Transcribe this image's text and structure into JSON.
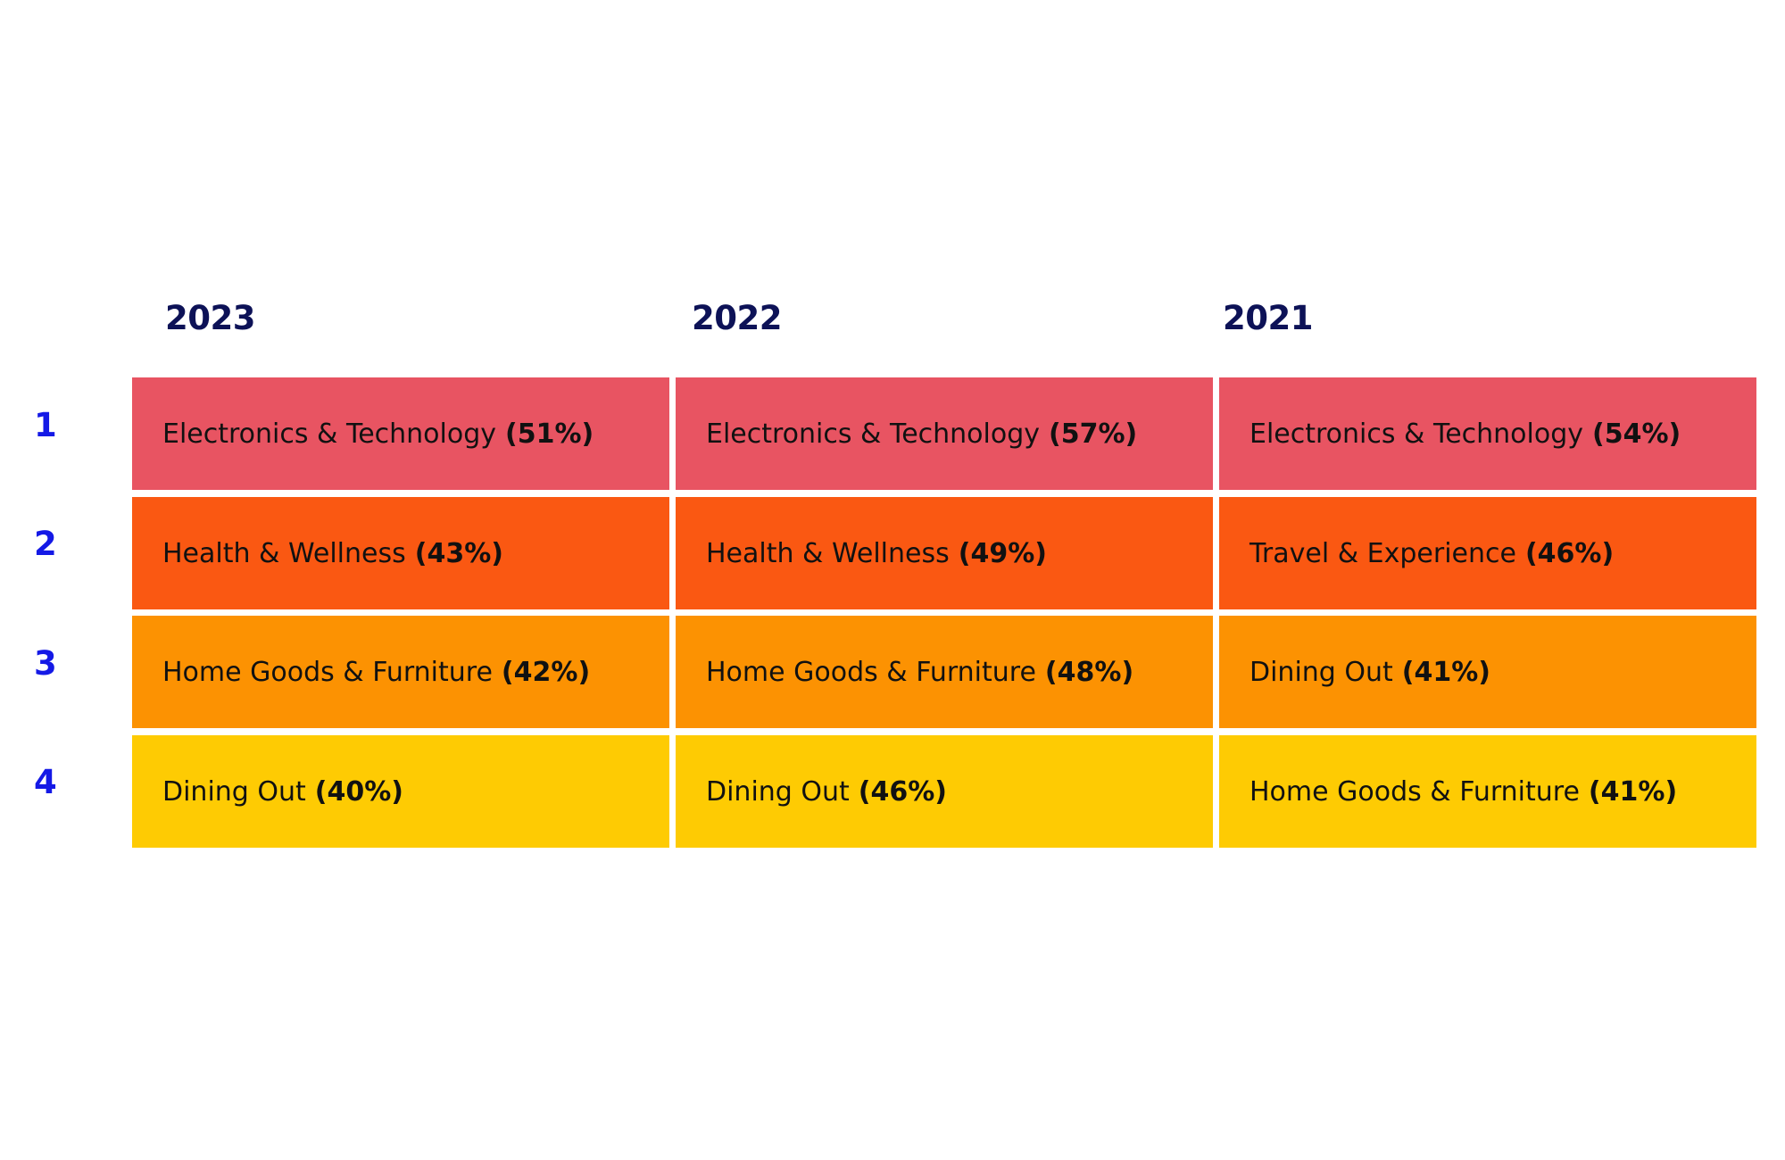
{
  "chart_data": {
    "type": "table",
    "columns": [
      "2023",
      "2022",
      "2021"
    ],
    "ranks": [
      "1",
      "2",
      "3",
      "4"
    ],
    "row_colors": [
      "#e85462",
      "#fa5812",
      "#fc9202",
      "#fecb03"
    ],
    "cells": [
      [
        {
          "label": "Electronics & Technology",
          "value": 51,
          "value_text": "(51%)"
        },
        {
          "label": "Electronics & Technology",
          "value": 57,
          "value_text": "(57%)"
        },
        {
          "label": "Electronics & Technology",
          "value": 54,
          "value_text": "(54%)"
        }
      ],
      [
        {
          "label": "Health & Wellness",
          "value": 43,
          "value_text": "(43%)"
        },
        {
          "label": "Health & Wellness",
          "value": 49,
          "value_text": "(49%)"
        },
        {
          "label": "Travel & Experience",
          "value": 46,
          "value_text": "(46%)"
        }
      ],
      [
        {
          "label": "Home Goods & Furniture",
          "value": 42,
          "value_text": "(42%)"
        },
        {
          "label": "Home Goods & Furniture",
          "value": 48,
          "value_text": "(48%)"
        },
        {
          "label": "Dining Out",
          "value": 41,
          "value_text": "(41%)"
        }
      ],
      [
        {
          "label": "Dining Out",
          "value": 40,
          "value_text": "(40%)"
        },
        {
          "label": "Dining Out",
          "value": 46,
          "value_text": "(46%)"
        },
        {
          "label": "Home Goods & Furniture",
          "value": 41,
          "value_text": "(41%)"
        }
      ]
    ]
  }
}
